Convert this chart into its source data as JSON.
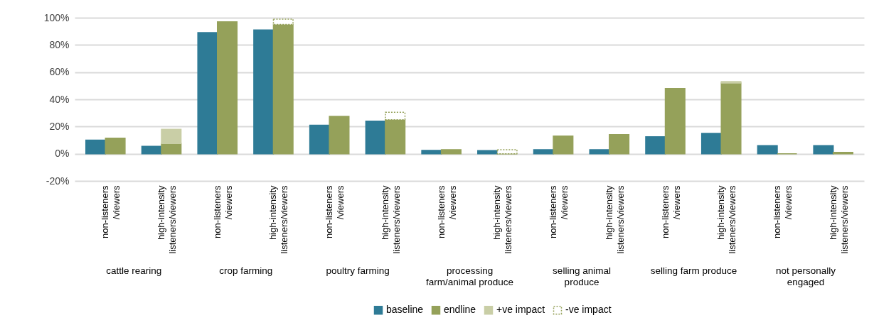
{
  "chart_data": {
    "type": "bar",
    "categories": [
      "non-listeners\n/viewers",
      "high-intensity\nlisteners/viewers",
      "non-listeners\n/viewers",
      "high-intensity\nlisteners/viewers",
      "non-listeners\n/viewers",
      "high-intensity\nlisteners/viewers",
      "non-listeners\n/viewers",
      "high-intensity\nlisteners/viewers",
      "non-listeners\n/viewers",
      "high-intensity\nlisteners/viewers",
      "non-listeners\n/viewers",
      "high-intensity\nlisteners/viewers",
      "non-listeners\n/viewers",
      "high-intensity\nlisteners/viewers"
    ],
    "annotations": [
      "cattle rearing",
      "crop farming",
      "poultry farming",
      "processing\nfarm/animal produce",
      "selling animal\nproduce",
      "selling farm produce",
      "not personally\nengaged"
    ],
    "series": [
      {
        "name": "baseline",
        "color": "#2e7b96",
        "values": [
          10,
          5.5,
          89,
          91,
          21,
          24,
          2.5,
          2.3,
          3,
          3,
          12.5,
          15,
          6,
          6
        ]
      },
      {
        "name": "endline",
        "color": "#95a15a",
        "values": [
          11.5,
          7.5,
          97,
          95,
          27.5,
          25,
          3,
          0,
          13,
          14,
          48,
          52,
          0,
          1
        ]
      },
      {
        "name": "+ve impact",
        "color": "#c9cea6",
        "base": [
          null,
          7.5,
          null,
          null,
          null,
          null,
          null,
          null,
          null,
          null,
          null,
          52,
          null,
          null
        ],
        "values": [
          null,
          10.5,
          null,
          null,
          null,
          null,
          null,
          null,
          null,
          null,
          null,
          1,
          null,
          null
        ]
      },
      {
        "name": "-ve impact",
        "color": "#95a15a",
        "base": [
          null,
          null,
          null,
          95,
          null,
          25,
          null,
          0,
          null,
          null,
          null,
          null,
          null,
          null
        ],
        "line_style": "dotted",
        "values": [
          null,
          null,
          null,
          4,
          null,
          5.5,
          null,
          3,
          null,
          null,
          null,
          null,
          null,
          null
        ]
      }
    ],
    "ylim": [
      -20,
      100
    ],
    "yticks": [
      {
        "value": -20,
        "label": "-20%"
      },
      {
        "value": 0,
        "label": "0%"
      },
      {
        "value": 20,
        "label": "20%"
      },
      {
        "value": 40,
        "label": "40%"
      },
      {
        "value": 60,
        "label": "60%"
      },
      {
        "value": 80,
        "label": "80%"
      },
      {
        "value": 100,
        "label": "100%"
      }
    ],
    "grid": "y",
    "legend": "bottom"
  }
}
